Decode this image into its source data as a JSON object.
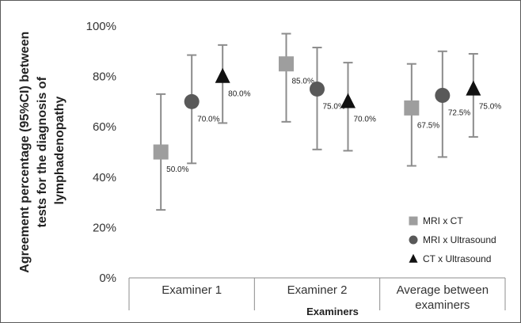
{
  "chart_data": {
    "type": "scatter",
    "title": "",
    "xlabel": "Examiners",
    "ylabel_lines": [
      "Agreement percentage (95%CI) between",
      "tests for the diagnosis of",
      "lymphadenopathy"
    ],
    "categories": [
      {
        "lines": [
          "Examiner 1"
        ]
      },
      {
        "lines": [
          "Examiner 2"
        ]
      },
      {
        "lines": [
          "Average between",
          "examiners"
        ]
      }
    ],
    "ylim": [
      0,
      100
    ],
    "y_ticks": [
      {
        "value": 0,
        "label": "0%"
      },
      {
        "value": 20,
        "label": "20%"
      },
      {
        "value": 40,
        "label": "40%"
      },
      {
        "value": 60,
        "label": "60%"
      },
      {
        "value": 80,
        "label": "80%"
      },
      {
        "value": 100,
        "label": "100%"
      }
    ],
    "grid": false,
    "legend_position": "bottom-right",
    "series": [
      {
        "name": "MRI x CT",
        "marker": "square",
        "color": "#9e9e9e",
        "points": [
          {
            "category": 0,
            "value": 50.0,
            "lower": 27.0,
            "upper": 73.0,
            "label": "50.0%"
          },
          {
            "category": 1,
            "value": 85.0,
            "lower": 62.0,
            "upper": 97.0,
            "label": "85.0%"
          },
          {
            "category": 2,
            "value": 67.5,
            "lower": 44.5,
            "upper": 85.0,
            "label": "67.5%"
          }
        ]
      },
      {
        "name": "MRI x Ultrasound",
        "marker": "circle",
        "color": "#595959",
        "points": [
          {
            "category": 0,
            "value": 70.0,
            "lower": 45.5,
            "upper": 88.5,
            "label": "70.0%"
          },
          {
            "category": 1,
            "value": 75.0,
            "lower": 51.0,
            "upper": 91.5,
            "label": "75.0%"
          },
          {
            "category": 2,
            "value": 72.5,
            "lower": 48.0,
            "upper": 90.0,
            "label": "72.5%"
          }
        ]
      },
      {
        "name": "CT x Ultrasound",
        "marker": "triangle",
        "color": "#111111",
        "points": [
          {
            "category": 0,
            "value": 80.0,
            "lower": 61.5,
            "upper": 92.5,
            "label": "80.0%"
          },
          {
            "category": 1,
            "value": 70.0,
            "lower": 50.5,
            "upper": 85.5,
            "label": "70.0%"
          },
          {
            "category": 2,
            "value": 75.0,
            "lower": 56.0,
            "upper": 89.0,
            "label": "75.0%"
          }
        ]
      }
    ]
  }
}
